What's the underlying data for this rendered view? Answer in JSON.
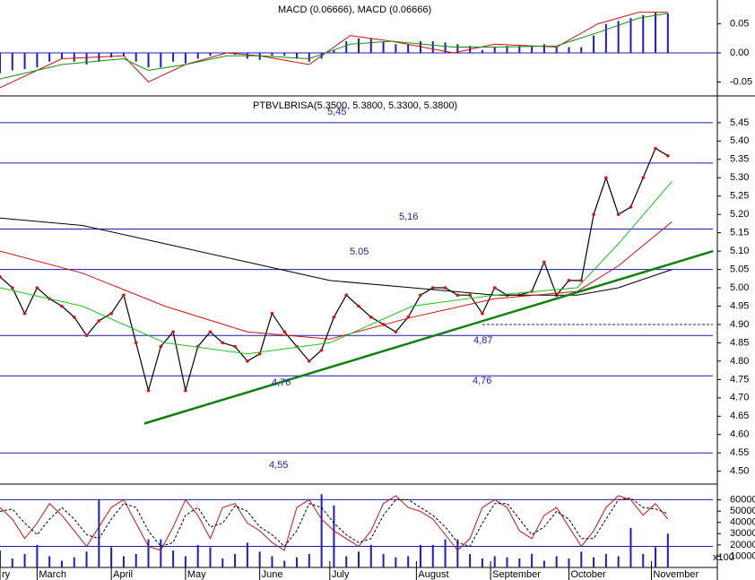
{
  "chart_data": [
    {
      "type": "bar",
      "title": "MACD (0.06666), MACD (0.06666)",
      "x": [
        0,
        3,
        6,
        9,
        12,
        15,
        18,
        21,
        24,
        27,
        30,
        33,
        36,
        39,
        42,
        45,
        48,
        51,
        54,
        57,
        60,
        63,
        66,
        69,
        72,
        75,
        78,
        81,
        84,
        87,
        90,
        93,
        96,
        99,
        102,
        105,
        108,
        111,
        114,
        117,
        120,
        123,
        126,
        129,
        132,
        135,
        138,
        141,
        144,
        147,
        150,
        153,
        156,
        159,
        162
      ],
      "values": [
        -0.035,
        -0.03,
        -0.028,
        -0.025,
        -0.015,
        -0.01,
        -0.015,
        -0.02,
        -0.015,
        -0.008,
        -0.005,
        -0.015,
        -0.025,
        -0.025,
        -0.015,
        -0.018,
        -0.01,
        -0.005,
        0.0,
        -0.003,
        -0.01,
        -0.012,
        -0.005,
        -0.005,
        -0.01,
        -0.015,
        -0.01,
        0.005,
        0.02,
        0.025,
        0.025,
        0.02,
        0.015,
        0.015,
        0.02,
        0.02,
        0.018,
        0.015,
        0.012,
        0.005,
        0.01,
        0.012,
        0.012,
        0.012,
        0.015,
        0.01,
        0.01,
        0.01,
        0.03,
        0.05,
        0.055,
        0.06,
        0.065,
        0.07,
        0.068
      ],
      "color": "#1c1ccc",
      "lines": [
        {
          "color": "#d01010",
          "x": [
            0,
            15,
            30,
            36,
            45,
            55,
            63,
            75,
            85,
            95,
            110,
            120,
            135,
            145,
            155,
            162
          ],
          "values": [
            -0.06,
            -0.01,
            -0.005,
            -0.05,
            -0.02,
            0.0,
            -0.005,
            -0.02,
            0.03,
            0.02,
            0.0,
            0.015,
            0.01,
            0.05,
            0.07,
            0.07
          ]
        },
        {
          "color": "#109010",
          "x": [
            0,
            15,
            30,
            36,
            45,
            55,
            63,
            75,
            85,
            95,
            110,
            120,
            135,
            145,
            155,
            162
          ],
          "values": [
            -0.045,
            -0.02,
            -0.01,
            -0.03,
            -0.02,
            -0.005,
            -0.005,
            -0.01,
            0.015,
            0.02,
            0.01,
            0.01,
            0.012,
            0.035,
            0.06,
            0.068
          ]
        }
      ],
      "xlim": [
        0,
        174
      ],
      "ylim": [
        -0.074,
        0.091
      ],
      "yticks": [
        0.05,
        {
          "value": 0,
          "label": "0.00"
        },
        -0.05
      ]
    },
    {
      "type": "line",
      "title": "PTBVLBRISA(5.3500, 5.3800, 5.3300, 5.3800)",
      "x": [
        0,
        3,
        6,
        9,
        12,
        15,
        18,
        21,
        24,
        27,
        30,
        33,
        36,
        39,
        42,
        45,
        48,
        51,
        54,
        57,
        60,
        63,
        66,
        69,
        72,
        75,
        78,
        81,
        84,
        87,
        90,
        93,
        96,
        99,
        102,
        105,
        108,
        111,
        114,
        117,
        120,
        123,
        126,
        129,
        132,
        135,
        138,
        141,
        144,
        147,
        150,
        153,
        156,
        159,
        162
      ],
      "values": [
        5.03,
        5.0,
        4.93,
        5.0,
        4.97,
        4.95,
        4.92,
        4.87,
        4.91,
        4.93,
        4.98,
        4.85,
        4.72,
        4.84,
        4.88,
        4.72,
        4.84,
        4.88,
        4.85,
        4.84,
        4.8,
        4.82,
        4.93,
        4.88,
        4.84,
        4.8,
        4.83,
        4.92,
        4.98,
        4.95,
        4.92,
        4.9,
        4.88,
        4.92,
        4.98,
        5.0,
        5.0,
        4.98,
        4.98,
        4.93,
        5.0,
        4.98,
        4.98,
        4.99,
        5.07,
        4.98,
        5.02,
        5.02,
        5.2,
        5.3,
        5.2,
        5.22,
        5.3,
        5.38,
        5.36
      ],
      "color": "#000000",
      "lines": [
        {
          "color": "#000000",
          "x": [
            0,
            20,
            40,
            60,
            80,
            100,
            120,
            140,
            150,
            163
          ],
          "values": [
            5.19,
            5.17,
            5.12,
            5.07,
            5.02,
            5.0,
            4.98,
            4.98,
            5.0,
            5.05
          ]
        },
        {
          "color": "#d01010",
          "x": [
            0,
            20,
            40,
            60,
            80,
            100,
            120,
            140,
            150,
            163
          ],
          "values": [
            5.1,
            5.04,
            4.95,
            4.88,
            4.86,
            4.92,
            4.97,
            4.99,
            5.06,
            5.18
          ]
        },
        {
          "color": "#20c020",
          "x": [
            0,
            20,
            40,
            60,
            80,
            100,
            120,
            140,
            150,
            163
          ],
          "values": [
            5.0,
            4.95,
            4.85,
            4.82,
            4.85,
            4.95,
            4.98,
            5.0,
            5.12,
            5.29
          ]
        }
      ],
      "trendline": {
        "color": "#108010",
        "x": [
          35,
          173
        ],
        "values": [
          4.63,
          5.1
        ]
      },
      "levels": [
        5.45,
        5.34,
        5.16,
        5.05,
        4.87,
        4.76,
        4.55
      ],
      "dashed_level": {
        "x": 117,
        "value": 4.9
      },
      "annotations": [
        "5,45",
        "5,16",
        "5.05",
        "4,87",
        "4,76",
        "4,76",
        "4,55"
      ],
      "xlim": [
        0,
        174
      ],
      "ylim": [
        4.465,
        5.523
      ],
      "yticks": [
        5.45,
        {
          "value": 5.4,
          "label": "5.40"
        },
        5.35,
        {
          "value": 5.3,
          "label": "5.30"
        },
        5.25,
        {
          "value": 5.2,
          "label": "5.20"
        },
        5.15,
        {
          "value": 5.1,
          "label": "5.10"
        },
        5.05,
        {
          "value": 5,
          "label": "5.00"
        },
        4.95,
        {
          "value": 4.9,
          "label": "4.90"
        },
        4.85,
        {
          "value": 4.8,
          "label": "4.80"
        },
        4.75,
        {
          "value": 4.7,
          "label": "4.70"
        },
        4.65,
        {
          "value": 4.6,
          "label": "4.60"
        },
        4.55,
        {
          "value": 4.5,
          "label": "4.50"
        }
      ],
      "xticks": [
        {
          "value": 0,
          "label": "ry"
        },
        {
          "value": 9,
          "label": "March"
        },
        {
          "value": 27,
          "label": "April"
        },
        {
          "value": 45,
          "label": "May"
        },
        {
          "value": 63,
          "label": "June"
        },
        {
          "value": 80,
          "label": "July"
        },
        {
          "value": 101,
          "label": "August"
        },
        {
          "value": 119,
          "label": "September"
        },
        {
          "value": 138,
          "label": "October"
        },
        {
          "value": 158,
          "label": "November"
        }
      ]
    },
    {
      "type": "bar",
      "unit_label": "x100",
      "x": [
        0,
        3,
        6,
        9,
        12,
        15,
        18,
        21,
        24,
        27,
        30,
        33,
        36,
        39,
        42,
        45,
        48,
        51,
        54,
        57,
        60,
        63,
        66,
        69,
        72,
        75,
        78,
        81,
        84,
        87,
        90,
        93,
        96,
        99,
        102,
        105,
        108,
        111,
        114,
        117,
        120,
        123,
        126,
        129,
        132,
        135,
        138,
        141,
        144,
        147,
        150,
        153,
        156,
        159,
        162
      ],
      "values": [
        15000,
        8000,
        12000,
        20000,
        10000,
        6000,
        9000,
        14000,
        60000,
        18000,
        10000,
        12000,
        25000,
        25000,
        15000,
        10000,
        20000,
        18000,
        8000,
        12000,
        22000,
        14000,
        10000,
        6000,
        9000,
        12000,
        65000,
        55000,
        10000,
        14000,
        20000,
        12000,
        9000,
        10000,
        20000,
        20000,
        25000,
        25000,
        12000,
        8000,
        10000,
        9000,
        8000,
        12000,
        6000,
        10000,
        8000,
        14000,
        9000,
        12000,
        10000,
        35000,
        12000,
        18000,
        30000
      ],
      "color": "#1c1ccc",
      "series": [
        {
          "color": "#d01010",
          "axis": "y2",
          "values": [
            70,
            55,
            30,
            50,
            75,
            60,
            40,
            20,
            45,
            70,
            80,
            50,
            20,
            15,
            45,
            80,
            60,
            30,
            70,
            75,
            50,
            40,
            25,
            15,
            70,
            80,
            55,
            40,
            30,
            20,
            40,
            75,
            85,
            70,
            65,
            55,
            35,
            15,
            30,
            70,
            80,
            70,
            40,
            30,
            60,
            70,
            45,
            20,
            40,
            70,
            85,
            80,
            60,
            75,
            55
          ]
        },
        {
          "color": "#000000",
          "axis": "y2",
          "dashed": true,
          "values": [
            65,
            68,
            50,
            35,
            55,
            70,
            55,
            35,
            30,
            55,
            75,
            70,
            40,
            20,
            25,
            60,
            70,
            45,
            50,
            72,
            65,
            45,
            35,
            20,
            40,
            75,
            70,
            50,
            35,
            25,
            30,
            60,
            80,
            80,
            70,
            60,
            45,
            25,
            20,
            50,
            75,
            75,
            55,
            35,
            45,
            65,
            55,
            30,
            30,
            55,
            80,
            82,
            70,
            68,
            62
          ]
        }
      ],
      "y2_levels": [
        80,
        20
      ],
      "xlim": [
        0,
        174
      ],
      "ylim": [
        0,
        74000
      ],
      "y2lim": [
        -7,
        100
      ],
      "yticks": [
        60000,
        50000,
        40000,
        30000,
        20000,
        10000
      ]
    }
  ]
}
